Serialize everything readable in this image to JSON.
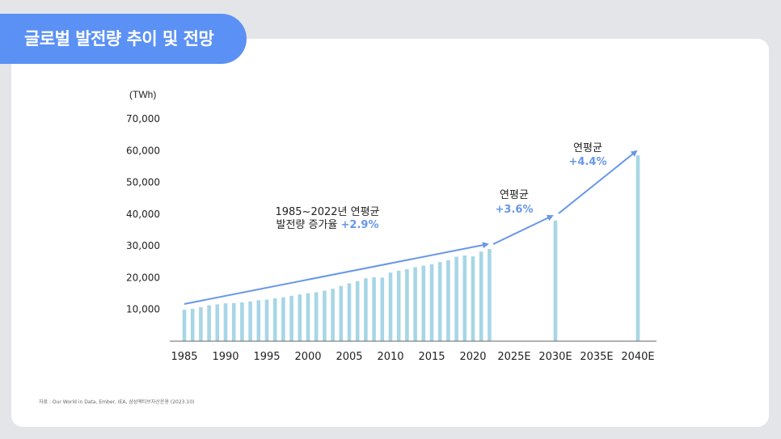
{
  "page": {
    "title": "글로벌 발전량 추이 및 전망",
    "source": "자료 : Our World in Data, Ember, IEA, 삼성액티브자산운용 (2023.10)"
  },
  "colors": {
    "bar": "#a7d6e6",
    "arrow": "#6797ea",
    "accent": "#6797ea",
    "title_bg": "#5b91f5"
  },
  "chart_data": {
    "type": "bar",
    "unit_label": "(TWh)",
    "ylim": [
      0,
      70000
    ],
    "y_ticks": [
      10000,
      20000,
      30000,
      40000,
      50000,
      60000,
      70000
    ],
    "y_tick_labels": [
      "10,000",
      "20,000",
      "30,000",
      "40,000",
      "50,000",
      "60,000",
      "70,000"
    ],
    "x_tick_labels": [
      "1985",
      "1990",
      "1995",
      "2000",
      "2005",
      "2010",
      "2015",
      "2020",
      "2025E",
      "2030E",
      "2035E",
      "2040E"
    ],
    "x_tick_years": [
      1985,
      1990,
      1995,
      2000,
      2005,
      2010,
      2015,
      2020,
      2025,
      2030,
      2035,
      2040
    ],
    "x": [
      1985,
      1986,
      1987,
      1988,
      1989,
      1990,
      1991,
      1992,
      1993,
      1994,
      1995,
      1996,
      1997,
      1998,
      1999,
      2000,
      2001,
      2002,
      2003,
      2004,
      2005,
      2006,
      2007,
      2008,
      2009,
      2010,
      2011,
      2012,
      2013,
      2014,
      2015,
      2016,
      2017,
      2018,
      2019,
      2020,
      2021,
      2022,
      2030,
      2040
    ],
    "values": [
      9900,
      10200,
      10700,
      11300,
      11600,
      11900,
      12000,
      12200,
      12500,
      12900,
      13100,
      13500,
      13800,
      14300,
      14700,
      15100,
      15400,
      15900,
      16500,
      17400,
      18200,
      18900,
      19800,
      20100,
      20000,
      21600,
      22200,
      22700,
      23300,
      23800,
      24200,
      24900,
      25500,
      26600,
      27000,
      26700,
      28200,
      29000,
      38000,
      58500
    ],
    "annotations": [
      {
        "line1": "1985~2022년 연평균",
        "line2_prefix": "발전량 증가율 ",
        "line2_value": "+2.9%"
      },
      {
        "line1": "연평균",
        "line2_value": "+3.6%"
      },
      {
        "line1": "연평균",
        "line2_value": "+4.4%"
      }
    ]
  }
}
